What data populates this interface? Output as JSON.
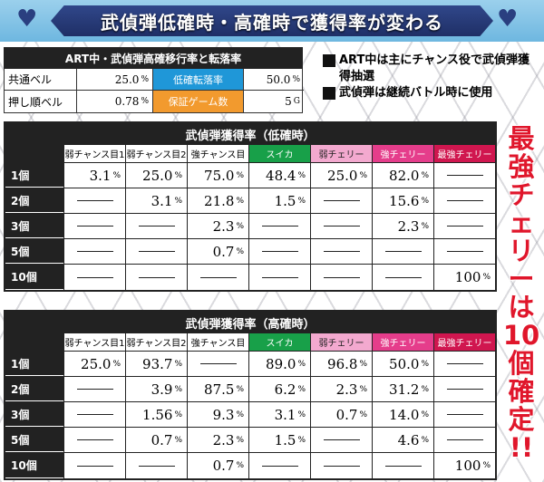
{
  "title": "武偵弾低確時・高確時で獲得率が変わる",
  "rate_table": {
    "heading": "ART中・武偵弾高確移行率と転落率",
    "row1": {
      "label": "共通ベル",
      "value": "25.0",
      "unit": "%",
      "label2": "低確転落率",
      "value2": "50.0",
      "unit2": "%"
    },
    "row2": {
      "label": "押し順ベル",
      "value": "0.78",
      "unit": "%",
      "label2": "保証ゲーム数",
      "value2": "5",
      "unit2": "G"
    }
  },
  "notes": [
    "ART中は主にチャンス役で武偵弾獲得抽選",
    "武偵弾は継続バトル時に使用"
  ],
  "columns": [
    {
      "label": "弱チャンス目1",
      "style": "plain"
    },
    {
      "label": "弱チャンス目2",
      "style": "plain"
    },
    {
      "label": "強チャンス目",
      "style": "plain"
    },
    {
      "label": "スイカ",
      "style": "green"
    },
    {
      "label": "弱チェリー",
      "style": "pink"
    },
    {
      "label": "強チェリー",
      "style": "magenta"
    },
    {
      "label": "最強チェリー",
      "style": "crimson"
    }
  ],
  "row_labels": [
    "1個",
    "2個",
    "3個",
    "5個",
    "10個"
  ],
  "table_low": {
    "title": "武偵弾獲得率（低確時）",
    "rows": [
      [
        "3.1",
        "25.0",
        "75.0",
        "48.4",
        "25.0",
        "82.0",
        "—"
      ],
      [
        "—",
        "3.1",
        "21.8",
        "1.5",
        "—",
        "15.6",
        "—"
      ],
      [
        "—",
        "—",
        "2.3",
        "—",
        "—",
        "2.3",
        "—"
      ],
      [
        "—",
        "—",
        "0.7",
        "—",
        "—",
        "—",
        "—"
      ],
      [
        "—",
        "—",
        "—",
        "—",
        "—",
        "—",
        "100"
      ]
    ]
  },
  "table_high": {
    "title": "武偵弾獲得率（高確時）",
    "rows": [
      [
        "25.0",
        "93.7",
        "—",
        "89.0",
        "96.8",
        "50.0",
        "—"
      ],
      [
        "—",
        "3.9",
        "87.5",
        "6.2",
        "2.3",
        "31.2",
        "—"
      ],
      [
        "—",
        "1.56",
        "9.3",
        "3.1",
        "0.7",
        "14.0",
        "—"
      ],
      [
        "—",
        "0.7",
        "2.3",
        "1.5",
        "—",
        "4.6",
        "—"
      ],
      [
        "—",
        "—",
        "0.7",
        "—",
        "—",
        "—",
        "100"
      ]
    ]
  },
  "pct_unit": "%",
  "side_text": "最強チェリーは10個確定!!"
}
